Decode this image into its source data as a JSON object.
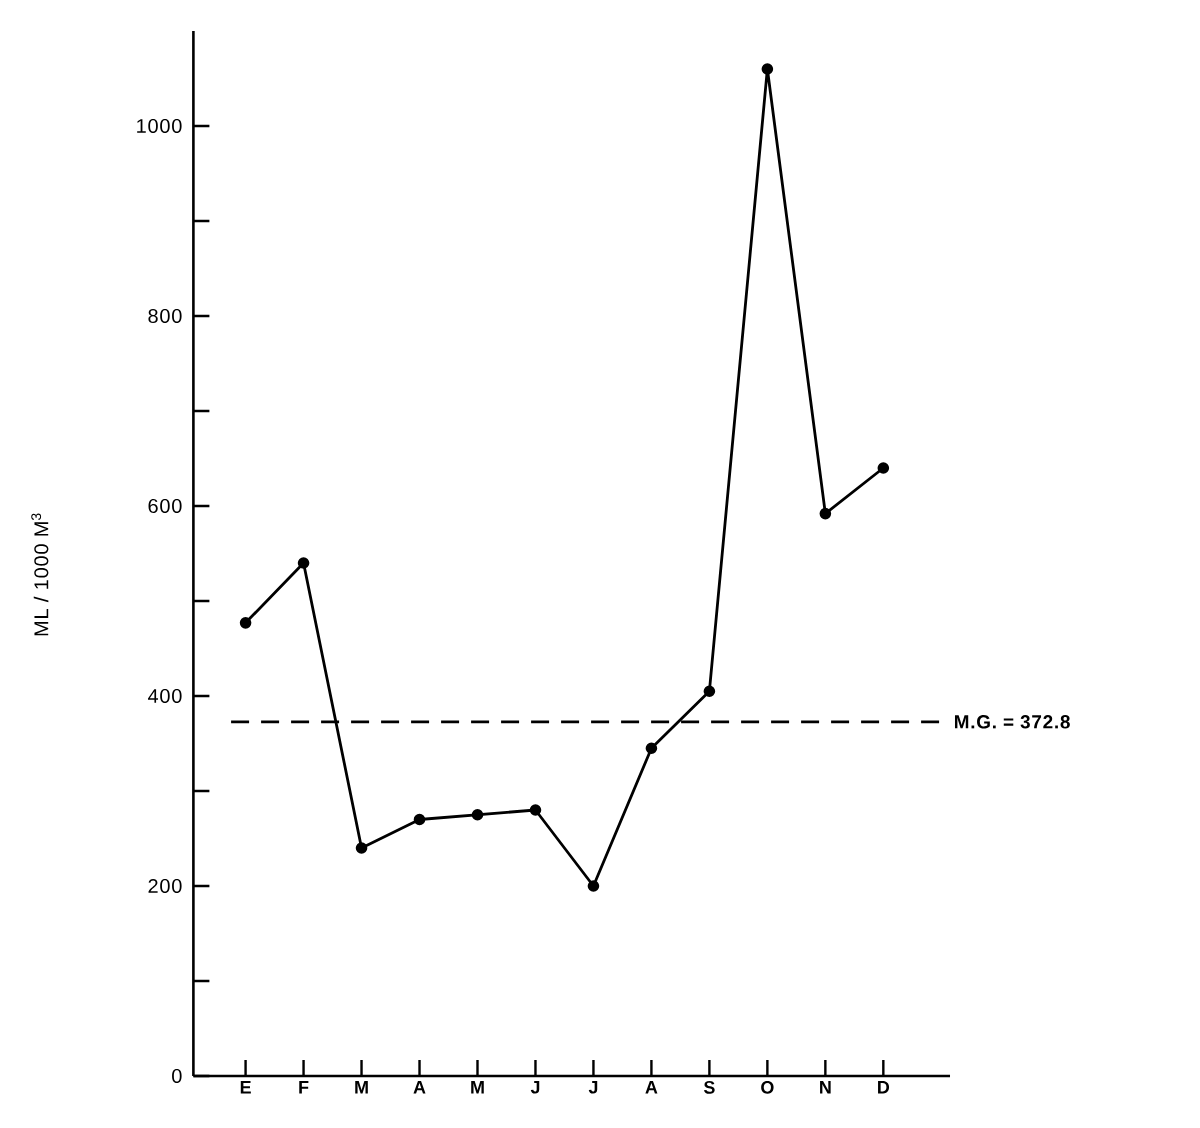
{
  "chart_data": {
    "type": "line",
    "ylabel": "ML / 1000 M$^{3}$",
    "categories": [
      "E",
      "F",
      "M",
      "A",
      "M",
      "J",
      "J",
      "A",
      "S",
      "O",
      "N",
      "D"
    ],
    "values": [
      477,
      540,
      240,
      270,
      275,
      280,
      200,
      345,
      405,
      1060,
      592,
      640
    ],
    "color": "#000000",
    "marker": "circle",
    "line_style": "solid",
    "ylim": [
      0,
      1100
    ],
    "yticks": [
      0,
      {
        "value": 100,
        "label": null
      },
      200,
      {
        "value": 300,
        "label": null
      },
      400,
      {
        "value": 500,
        "label": null
      },
      600,
      {
        "value": 700,
        "label": null
      },
      800,
      {
        "value": 900,
        "label": null
      },
      1000
    ],
    "ref_lines": [
      {
        "axis": "y",
        "value": 372.8,
        "label": "M.G. = 372.8",
        "line_style": "dashed",
        "color": "#000000"
      }
    ],
    "grid": false
  }
}
